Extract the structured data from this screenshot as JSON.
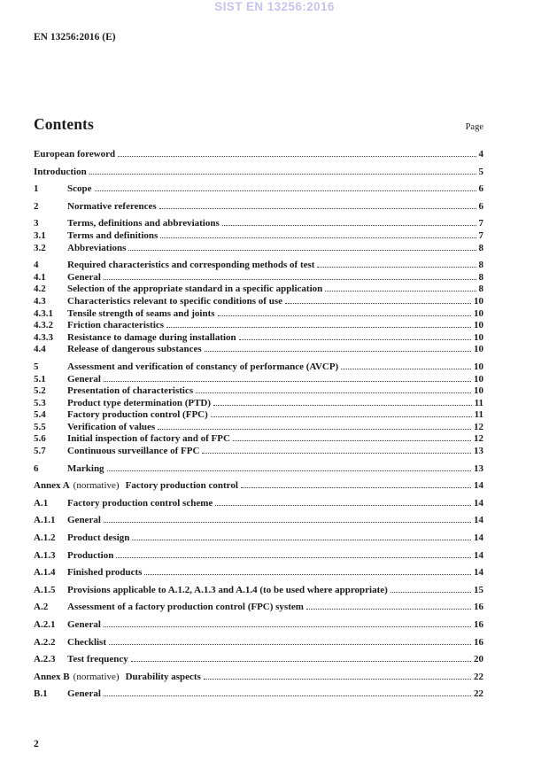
{
  "watermark": {
    "text": "SIST EN 13256:2016"
  },
  "header": {
    "document_reference": "EN 13256:2016 (E)"
  },
  "toc": {
    "title": "Contents",
    "page_column_label": "Page",
    "entries": [
      {
        "num": null,
        "label": "European foreword",
        "page": "4",
        "group_start": true
      },
      {
        "num": null,
        "label": "Introduction",
        "page": "5",
        "group_start": true
      },
      {
        "num": "1",
        "label": "Scope",
        "page": "6",
        "group_start": true
      },
      {
        "num": "2",
        "label": "Normative references",
        "page": "6",
        "group_start": true
      },
      {
        "num": "3",
        "label": "Terms, definitions and abbreviations",
        "page": "7",
        "group_start": true
      },
      {
        "num": "3.1",
        "label": "Terms and definitions",
        "page": "7",
        "group_start": false
      },
      {
        "num": "3.2",
        "label": "Abbreviations",
        "page": "8",
        "group_start": false
      },
      {
        "num": "4",
        "label": "Required characteristics and corresponding methods of test",
        "page": "8",
        "group_start": true
      },
      {
        "num": "4.1",
        "label": "General",
        "page": "8",
        "group_start": false
      },
      {
        "num": "4.2",
        "label": "Selection of the appropriate standard in a specific application",
        "page": "8",
        "group_start": false
      },
      {
        "num": "4.3",
        "label": "Characteristics relevant to specific conditions of use",
        "page": "10",
        "group_start": false
      },
      {
        "num": "4.3.1",
        "label": "Tensile strength of seams and joints",
        "page": "10",
        "group_start": false
      },
      {
        "num": "4.3.2",
        "label": "Friction characteristics",
        "page": "10",
        "group_start": false
      },
      {
        "num": "4.3.3",
        "label": "Resistance to damage during installation",
        "page": "10",
        "group_start": false
      },
      {
        "num": "4.4",
        "label": "Release of dangerous substances",
        "page": "10",
        "group_start": false
      },
      {
        "num": "5",
        "label": "Assessment and verification of constancy of performance (AVCP)",
        "page": "10",
        "group_start": true
      },
      {
        "num": "5.1",
        "label": "General",
        "page": "10",
        "group_start": false
      },
      {
        "num": "5.2",
        "label": "Presentation of characteristics",
        "page": "10",
        "group_start": false
      },
      {
        "num": "5.3",
        "label": "Product type determination (PTD)",
        "page": "11",
        "group_start": false
      },
      {
        "num": "5.4",
        "label": "Factory production control (FPC)",
        "page": "11",
        "group_start": false
      },
      {
        "num": "5.5",
        "label": "Verification of values",
        "page": "12",
        "group_start": false
      },
      {
        "num": "5.6",
        "label": "Initial inspection of factory and of FPC",
        "page": "12",
        "group_start": false
      },
      {
        "num": "5.7",
        "label": "Continuous surveillance of FPC",
        "page": "13",
        "group_start": false
      },
      {
        "num": "6",
        "label": "Marking",
        "page": "13",
        "group_start": true
      },
      {
        "prefix": "Annex A",
        "qualifier": "(normative)",
        "label": "Factory production control",
        "page": "14",
        "group_start": true
      },
      {
        "num": "A.1",
        "label": "Factory production control scheme",
        "page": "14",
        "group_start": true
      },
      {
        "num": "A.1.1",
        "label": "General",
        "page": "14",
        "group_start": true
      },
      {
        "num": "A.1.2",
        "label": "Product design",
        "page": "14",
        "group_start": true
      },
      {
        "num": "A.1.3",
        "label": "Production",
        "page": "14",
        "group_start": true
      },
      {
        "num": "A.1.4",
        "label": "Finished products",
        "page": "14",
        "group_start": true
      },
      {
        "num": "A.1.5",
        "label": "Provisions applicable to A.1.2, A.1.3 and A.1.4 (to be used where appropriate)",
        "page": "15",
        "group_start": true
      },
      {
        "num": "A.2",
        "label": "Assessment of a factory production control (FPC) system",
        "page": "16",
        "group_start": true
      },
      {
        "num": "A.2.1",
        "label": "General",
        "page": "16",
        "group_start": true
      },
      {
        "num": "A.2.2",
        "label": "Checklist",
        "page": "16",
        "group_start": true
      },
      {
        "num": "A.2.3",
        "label": "Test frequency",
        "page": "20",
        "group_start": true
      },
      {
        "prefix": "Annex B",
        "qualifier": "(normative)",
        "label": "Durability aspects",
        "page": "22",
        "group_start": true
      },
      {
        "num": "B.1",
        "label": "General",
        "page": "22",
        "group_start": true
      }
    ]
  },
  "footer": {
    "page_number": "2"
  }
}
